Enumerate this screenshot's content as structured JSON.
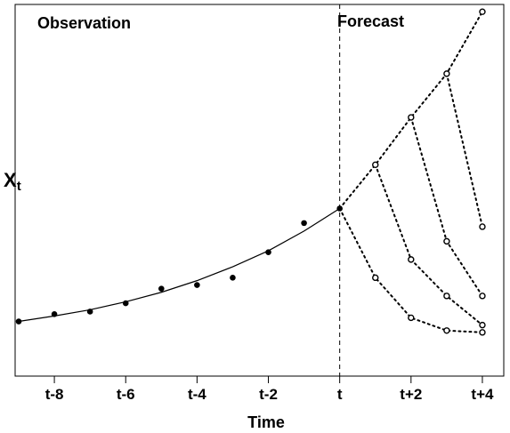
{
  "chart_data": {
    "type": "line",
    "title": "",
    "xlabel": "Time",
    "ylabel": "X",
    "ylabel_subscript": "t",
    "xlim": [
      -9.1,
      4.6
    ],
    "ylim": [
      -0.2,
      10
    ],
    "grid": false,
    "annotations": {
      "left": "Observation",
      "right": "Forecast"
    },
    "divider_x": 0,
    "x_ticks": [
      {
        "value": -8,
        "label": "t-8"
      },
      {
        "value": -6,
        "label": "t-6"
      },
      {
        "value": -4,
        "label": "t-4"
      },
      {
        "value": -2,
        "label": "t-2"
      },
      {
        "value": 0,
        "label": "t"
      },
      {
        "value": 2,
        "label": "t+2"
      },
      {
        "value": 4,
        "label": "t+4"
      }
    ],
    "observed_points": [
      {
        "x": -9,
        "y": 1.3
      },
      {
        "x": -8,
        "y": 1.5
      },
      {
        "x": -7,
        "y": 1.57
      },
      {
        "x": -6,
        "y": 1.8
      },
      {
        "x": -5,
        "y": 2.2
      },
      {
        "x": -4,
        "y": 2.3
      },
      {
        "x": -3,
        "y": 2.5
      },
      {
        "x": -2,
        "y": 3.2
      },
      {
        "x": -1,
        "y": 4.0
      },
      {
        "x": 0,
        "y": 4.4
      }
    ],
    "fitted_curve": [
      {
        "x": -9,
        "y": 1.3
      },
      {
        "x": -8,
        "y": 1.45
      },
      {
        "x": -7,
        "y": 1.62
      },
      {
        "x": -6,
        "y": 1.84
      },
      {
        "x": -5,
        "y": 2.1
      },
      {
        "x": -4,
        "y": 2.42
      },
      {
        "x": -3,
        "y": 2.8
      },
      {
        "x": -2,
        "y": 3.24
      },
      {
        "x": -1,
        "y": 3.78
      },
      {
        "x": 0,
        "y": 4.4
      }
    ],
    "forecast_paths": [
      [
        {
          "x": 0,
          "y": 4.4
        },
        {
          "x": 1,
          "y": 5.6
        },
        {
          "x": 2,
          "y": 6.9
        },
        {
          "x": 3,
          "y": 8.1
        },
        {
          "x": 4,
          "y": 9.8
        }
      ],
      [
        {
          "x": 1,
          "y": 5.6
        },
        {
          "x": 2,
          "y": 3.0
        },
        {
          "x": 3,
          "y": 2.0
        },
        {
          "x": 4,
          "y": 1.2
        }
      ],
      [
        {
          "x": 2,
          "y": 6.9
        },
        {
          "x": 3,
          "y": 3.5
        },
        {
          "x": 4,
          "y": 2.0
        }
      ],
      [
        {
          "x": 3,
          "y": 8.1
        },
        {
          "x": 4,
          "y": 3.9
        }
      ],
      [
        {
          "x": 0,
          "y": 4.4
        },
        {
          "x": 1,
          "y": 2.5
        },
        {
          "x": 2,
          "y": 1.4
        },
        {
          "x": 3,
          "y": 1.05
        },
        {
          "x": 4,
          "y": 1.0
        }
      ]
    ]
  }
}
